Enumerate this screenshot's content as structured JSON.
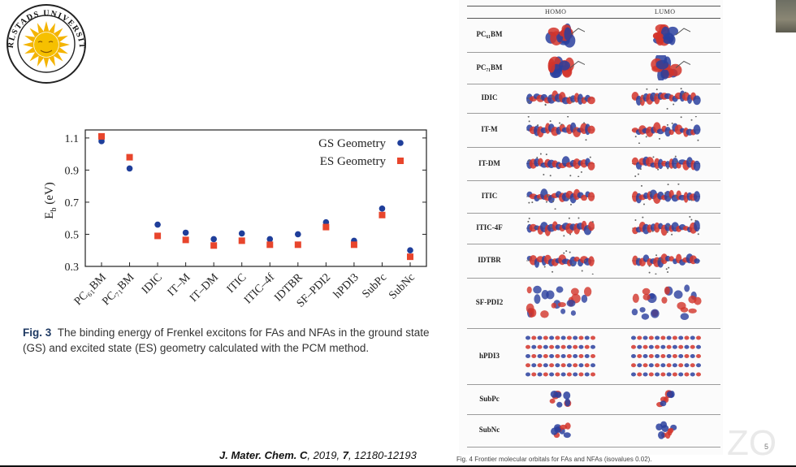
{
  "logo": {
    "text": "KARLSTADS UNIVERSITET"
  },
  "chart_data": {
    "type": "scatter",
    "categories": [
      "PC61BM",
      "PC71BM",
      "IDIC",
      "IT-M",
      "IT-DM",
      "ITIC",
      "ITIC-4f",
      "IDTBR",
      "SF-PDI2",
      "hPDI3",
      "SubPc",
      "SubNc"
    ],
    "tick_labels": [
      "PC₆₁BM",
      "PC₇₁BM",
      "IDIC",
      "IT–M",
      "IT–DM",
      "ITIC",
      "ITIC–4f",
      "IDTBR",
      "SF–PDI2",
      "hPDI3",
      "SubPc",
      "SubNc"
    ],
    "series": [
      {
        "name": "GS Geometry",
        "color": "#1f3e9a",
        "marker": "circle",
        "values": [
          1.08,
          0.91,
          0.56,
          0.51,
          0.47,
          0.505,
          0.47,
          0.5,
          0.575,
          0.46,
          0.66,
          0.4
        ]
      },
      {
        "name": "ES Geometry",
        "color": "#e8452c",
        "marker": "square",
        "values": [
          1.11,
          0.98,
          0.49,
          0.465,
          0.43,
          0.46,
          0.435,
          0.435,
          0.545,
          0.435,
          0.62,
          0.36
        ]
      }
    ],
    "ylabel": "E_b (eV)",
    "yticks": [
      "0.3",
      "0.5",
      "0.7",
      "0.9",
      "1.1"
    ],
    "ylim": [
      0.3,
      1.15
    ],
    "legend_position": "top-right"
  },
  "fig3": {
    "label": "Fig. 3",
    "text": "The binding energy of Frenkel excitons for FAs and NFAs in the ground state (GS) and excited state (ES) geometry calculated with the PCM method."
  },
  "citation": {
    "journal": "J. Mater. Chem. C",
    "rest": ", 2019,",
    "volume": "7",
    "pages": ", 12180-12193"
  },
  "mo_table": {
    "headers": [
      "HOMO",
      "LUMO"
    ],
    "rows": [
      {
        "label": "PC₆₁BM",
        "shape": "ball"
      },
      {
        "label": "PC₇₁BM",
        "shape": "ball"
      },
      {
        "label": "IDIC",
        "shape": "chain"
      },
      {
        "label": "IT-M",
        "shape": "chain"
      },
      {
        "label": "IT-DM",
        "shape": "chain"
      },
      {
        "label": "ITIC",
        "shape": "chain"
      },
      {
        "label": "ITIC-4F",
        "shape": "chain"
      },
      {
        "label": "IDTBR",
        "shape": "chain"
      },
      {
        "label": "SF-PDI2",
        "shape": "wing"
      },
      {
        "label": "hPDI3",
        "shape": "grid"
      },
      {
        "label": "SubPc",
        "shape": "tri"
      },
      {
        "label": "SubNc",
        "shape": "tri"
      }
    ]
  },
  "fig4": {
    "text": "Fig. 4  Frontier molecular orbitals for FAs and NFAs (isovalues 0.02)."
  },
  "page": {
    "number": "5"
  },
  "colors": {
    "red_lobe": "#d2342a",
    "blue_lobe": "#2a3f9e",
    "caption_label": "#1f3a63"
  }
}
